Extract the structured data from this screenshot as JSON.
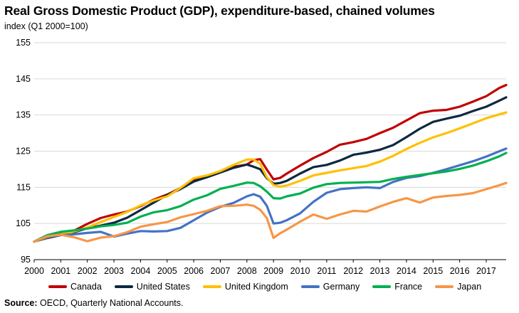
{
  "title": "Real Gross Domestic Product (GDP), expenditure-based, chained volumes",
  "subtitle": "index (Q1 2000=100)",
  "source": {
    "label": "Source:",
    "text": " OECD, Quarterly National Accounts."
  },
  "chart_data": {
    "type": "line",
    "title": "Real Gross Domestic Product (GDP), expenditure-based, chained volumes",
    "ylabel": "index (Q1 2000=100)",
    "xlabel": "",
    "ylim": [
      95,
      155
    ],
    "xlim": [
      2000,
      2017.75
    ],
    "yticks": [
      "95",
      "105",
      "115",
      "125",
      "135",
      "145",
      "155"
    ],
    "xticks": [
      "2000",
      "2001",
      "2002",
      "2003",
      "2004",
      "2005",
      "2006",
      "2007",
      "2008",
      "2009",
      "2010",
      "2011",
      "2012",
      "2013",
      "2014",
      "2015",
      "2016",
      "2017"
    ],
    "grid": "horizontal",
    "legend_position": "bottom",
    "x": [
      "2000",
      "2000.5",
      "2001",
      "2001.5",
      "2002",
      "2002.5",
      "2003",
      "2003.5",
      "2004",
      "2004.5",
      "2005",
      "2005.5",
      "2006",
      "2006.5",
      "2007",
      "2007.5",
      "2008",
      "2008.25",
      "2008.5",
      "2008.75",
      "2009",
      "2009.25",
      "2009.5",
      "2010",
      "2010.5",
      "2011",
      "2011.5",
      "2012",
      "2012.5",
      "2013",
      "2013.5",
      "2014",
      "2014.5",
      "2015",
      "2015.5",
      "2016",
      "2016.5",
      "2017",
      "2017.5",
      "2017.75"
    ],
    "series": [
      {
        "name": "Canada",
        "color": "#c00000",
        "values": [
          100,
          101.6,
          102.3,
          103.0,
          104.9,
          106.5,
          107.5,
          108.3,
          109.8,
          111.6,
          113.0,
          114.8,
          117.2,
          117.9,
          119.3,
          120.7,
          121.3,
          122.5,
          122.8,
          119.9,
          117.2,
          117.6,
          118.8,
          121.0,
          123.1,
          124.8,
          126.8,
          127.5,
          128.4,
          130.0,
          131.5,
          133.5,
          135.5,
          136.2,
          136.4,
          137.3,
          138.7,
          140.2,
          142.5,
          143.3
        ]
      },
      {
        "name": "United States",
        "color": "#0e2841",
        "values": [
          100,
          101.0,
          101.8,
          102.6,
          103.7,
          104.4,
          105.2,
          106.6,
          108.7,
          110.8,
          112.9,
          114.5,
          116.6,
          117.8,
          119.1,
          120.4,
          121.3,
          120.7,
          120.0,
          117.5,
          116.0,
          116.2,
          116.8,
          118.8,
          120.6,
          121.2,
          122.4,
          124.0,
          124.6,
          125.4,
          126.7,
          128.9,
          131.2,
          133.1,
          134.0,
          134.8,
          136.1,
          137.3,
          139.0,
          139.9
        ]
      },
      {
        "name": "United Kingdom",
        "color": "#ffc000",
        "values": [
          100,
          101.2,
          102.0,
          102.8,
          103.9,
          105.4,
          106.8,
          108.2,
          110.0,
          111.4,
          112.5,
          114.8,
          117.5,
          118.3,
          119.5,
          121.2,
          122.7,
          122.7,
          121.5,
          117.8,
          115.6,
          115.2,
          115.5,
          116.8,
          118.3,
          119.0,
          119.7,
          120.3,
          120.9,
          122.1,
          123.7,
          125.6,
          127.3,
          128.8,
          130.0,
          131.3,
          132.7,
          134.1,
          135.2,
          135.7
        ]
      },
      {
        "name": "Germany",
        "color": "#4472c4",
        "values": [
          100,
          101.3,
          101.8,
          102.0,
          102.4,
          102.7,
          101.4,
          102.2,
          102.9,
          102.8,
          102.9,
          103.8,
          105.9,
          108.0,
          109.6,
          110.7,
          112.5,
          113.1,
          112.4,
          109.9,
          105.0,
          105.2,
          105.9,
          107.8,
          111.0,
          113.5,
          114.5,
          114.8,
          115.0,
          114.8,
          116.5,
          117.6,
          118.1,
          119.0,
          120.0,
          121.1,
          122.2,
          123.5,
          125.0,
          125.7
        ]
      },
      {
        "name": "France",
        "color": "#00b050",
        "values": [
          100,
          101.8,
          102.7,
          103.1,
          103.6,
          104.2,
          104.6,
          105.2,
          106.9,
          108.1,
          108.7,
          109.8,
          111.6,
          112.8,
          114.6,
          115.4,
          116.3,
          116.2,
          115.3,
          113.8,
          112.0,
          111.9,
          112.5,
          113.3,
          114.9,
          115.9,
          116.2,
          116.3,
          116.4,
          116.5,
          117.3,
          117.9,
          118.4,
          118.9,
          119.4,
          120.1,
          121.0,
          122.2,
          123.6,
          124.5
        ]
      },
      {
        "name": "Japan",
        "color": "#f79646",
        "values": [
          100,
          101.5,
          101.9,
          101.2,
          100.1,
          101.1,
          101.5,
          102.6,
          104.1,
          104.8,
          105.4,
          106.7,
          107.6,
          108.5,
          109.8,
          109.9,
          110.2,
          109.9,
          108.8,
          106.5,
          101.0,
          102.3,
          103.3,
          105.5,
          107.5,
          106.3,
          107.5,
          108.5,
          108.3,
          109.7,
          111.0,
          112.0,
          110.8,
          112.2,
          112.6,
          112.9,
          113.4,
          114.5,
          115.6,
          116.2
        ]
      }
    ]
  }
}
